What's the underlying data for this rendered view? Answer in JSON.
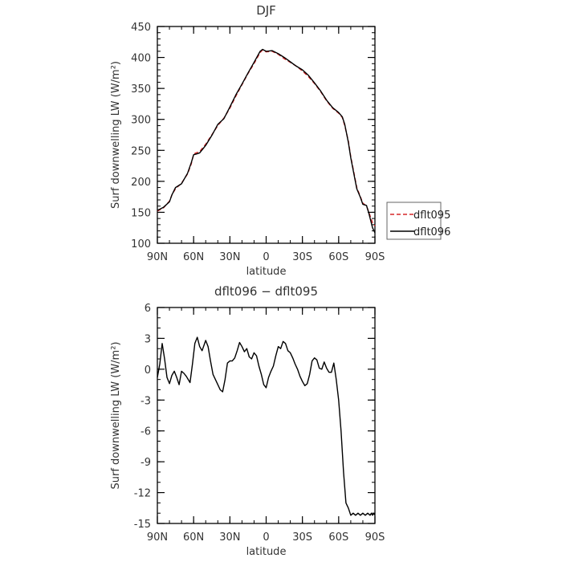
{
  "chart_data": [
    {
      "type": "line",
      "title": "DJF",
      "xlabel": "latitude",
      "ylabel": "Surf downwelling LW (W/m²)",
      "xlim": [
        -90,
        90
      ],
      "ylim": [
        100,
        450
      ],
      "x_ticks": [
        -90,
        -60,
        -30,
        0,
        30,
        60,
        90
      ],
      "x_tick_labels": [
        "90N",
        "60N",
        "30N",
        "0",
        "30S",
        "60S",
        "90S"
      ],
      "y_ticks": [
        100,
        150,
        200,
        250,
        300,
        350,
        400,
        450
      ],
      "legend": "right",
      "series": [
        {
          "name": "dflt095",
          "color": "#d62728",
          "dash": "dashed",
          "x": [
            -90,
            -85,
            -80,
            -78,
            -75,
            -70,
            -65,
            -62,
            -60,
            -58,
            -55,
            -50,
            -45,
            -40,
            -35,
            -30,
            -25,
            -20,
            -15,
            -10,
            -5,
            -3,
            0,
            5,
            10,
            15,
            20,
            25,
            30,
            35,
            40,
            45,
            50,
            55,
            60,
            63,
            65,
            68,
            70,
            73,
            75,
            78,
            80,
            83,
            85,
            88,
            90
          ],
          "y": [
            152,
            157,
            168,
            178,
            188,
            197,
            212,
            228,
            244,
            246,
            248,
            260,
            275,
            290,
            302,
            318,
            338,
            356,
            374,
            390,
            408,
            412,
            409,
            410,
            405,
            398,
            392,
            386,
            378,
            369,
            358,
            345,
            330,
            318,
            310,
            303,
            290,
            265,
            240,
            210,
            190,
            175,
            165,
            160,
            150,
            133,
            128
          ]
        },
        {
          "name": "dflt096",
          "color": "#000000",
          "dash": "solid",
          "x": [
            -90,
            -85,
            -80,
            -78,
            -75,
            -70,
            -65,
            -62,
            -60,
            -58,
            -55,
            -50,
            -45,
            -40,
            -35,
            -30,
            -25,
            -20,
            -15,
            -10,
            -5,
            -3,
            0,
            5,
            10,
            15,
            20,
            25,
            30,
            35,
            40,
            45,
            50,
            55,
            60,
            63,
            65,
            68,
            70,
            73,
            75,
            78,
            80,
            83,
            85,
            88,
            90
          ],
          "y": [
            153,
            158,
            167,
            178,
            190,
            196,
            213,
            230,
            243,
            244,
            246,
            258,
            274,
            292,
            301,
            320,
            340,
            357,
            375,
            392,
            410,
            413,
            410,
            411,
            406,
            400,
            393,
            386,
            380,
            371,
            359,
            346,
            331,
            319,
            311,
            304,
            292,
            263,
            238,
            208,
            188,
            174,
            163,
            161,
            148,
            125,
            117
          ]
        }
      ]
    },
    {
      "type": "line",
      "title": "dflt096 − dflt095",
      "xlabel": "latitude",
      "ylabel": "Surf downwelling LW (W/m²)",
      "xlim": [
        -90,
        90
      ],
      "ylim": [
        -15,
        6
      ],
      "x_ticks": [
        -90,
        -60,
        -30,
        0,
        30,
        60,
        90
      ],
      "x_tick_labels": [
        "90N",
        "60N",
        "30N",
        "0",
        "30S",
        "60S",
        "90S"
      ],
      "y_ticks": [
        6,
        3,
        0,
        -3,
        -6,
        -9,
        -12,
        -15
      ],
      "series": [
        {
          "color": "#000000",
          "dash": "solid",
          "x": [
            -90,
            -88,
            -86,
            -84,
            -82,
            -80,
            -78,
            -76,
            -74,
            -72,
            -70,
            -68,
            -66,
            -63,
            -61,
            -59,
            -57,
            -55,
            -53,
            -50,
            -48,
            -46,
            -44,
            -42,
            -40,
            -38,
            -36,
            -34,
            -32,
            -30,
            -28,
            -26,
            -24,
            -22,
            -20,
            -18,
            -16,
            -14,
            -12,
            -10,
            -8,
            -6,
            -4,
            -2,
            0,
            2,
            4,
            6,
            8,
            10,
            12,
            14,
            16,
            18,
            20,
            22,
            24,
            26,
            28,
            30,
            32,
            34,
            36,
            38,
            40,
            42,
            44,
            46,
            48,
            50,
            52,
            54,
            56,
            58,
            60,
            62,
            64,
            66,
            68,
            70,
            72,
            74,
            76,
            78,
            80,
            82,
            84,
            86,
            87,
            88,
            89,
            90
          ],
          "y": [
            -0.8,
            0.5,
            2.5,
            1.0,
            -0.8,
            -1.4,
            -0.6,
            -0.2,
            -0.8,
            -1.5,
            -0.2,
            -0.4,
            -0.7,
            -1.3,
            0.5,
            2.5,
            3.1,
            2.2,
            1.8,
            2.8,
            2.2,
            0.8,
            -0.5,
            -1.0,
            -1.5,
            -2.0,
            -2.2,
            -1.0,
            0.6,
            0.8,
            0.8,
            1.1,
            1.8,
            2.6,
            2.2,
            1.7,
            2.0,
            1.2,
            1.0,
            1.6,
            1.3,
            0.3,
            -0.5,
            -1.5,
            -1.8,
            -0.8,
            -0.2,
            0.3,
            1.3,
            2.2,
            2.0,
            2.7,
            2.5,
            1.8,
            1.6,
            1.1,
            0.5,
            0.0,
            -0.7,
            -1.2,
            -1.6,
            -1.4,
            -0.5,
            0.8,
            1.1,
            0.9,
            0.1,
            0.0,
            0.7,
            0.1,
            -0.3,
            -0.3,
            0.6,
            -1.0,
            -3.0,
            -6.0,
            -10.0,
            -13.0,
            -13.5,
            -14.2,
            -14.0,
            -14.2,
            -14.0,
            -14.2,
            -14.0,
            -14.2,
            -14.0,
            -14.2,
            -14.0,
            -14.2,
            -14.0,
            -14.2
          ]
        }
      ]
    }
  ],
  "legend_items": [
    {
      "name": "dflt095"
    },
    {
      "name": "dflt096"
    }
  ]
}
